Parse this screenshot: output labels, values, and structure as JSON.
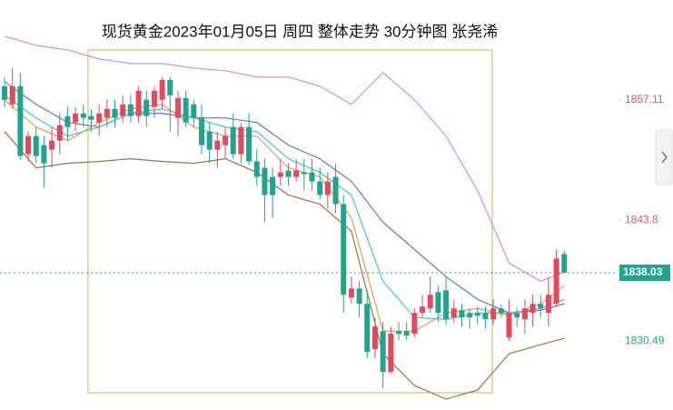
{
  "chart_data": {
    "type": "candlestick",
    "title": "现货黄金2023年01月05日 周四 整体走势  30分钟图  张尧浠",
    "up_color": "#e5475b",
    "down_color": "#1fa58f",
    "ylim": [
      1822.9,
      1868.1
    ],
    "yticks": [
      1857.11,
      1843.8,
      1830.49
    ],
    "ytick_colors": [
      "#d9556a",
      "#d9556a",
      "#1fa58f"
    ],
    "last_price": 1838.03,
    "last_price_color": "#1fa58f",
    "candles": [
      [
        1858.6,
        1859.6,
        1856.3,
        1857.1
      ],
      [
        1856.6,
        1860.6,
        1856.1,
        1858.6
      ],
      [
        1858.6,
        1860.1,
        1850.5,
        1850.9
      ],
      [
        1851.1,
        1853.6,
        1850.3,
        1853.1
      ],
      [
        1853.1,
        1854.1,
        1850.1,
        1850.9
      ],
      [
        1852.1,
        1853.1,
        1847.4,
        1850.1
      ],
      [
        1851.6,
        1854.1,
        1849.6,
        1852.6
      ],
      [
        1852.6,
        1855.6,
        1851.1,
        1854.3
      ],
      [
        1855.3,
        1856.3,
        1852.6,
        1854.1
      ],
      [
        1854.6,
        1856.3,
        1853.6,
        1855.6
      ],
      [
        1855.6,
        1856.6,
        1854.1,
        1855.1
      ],
      [
        1855.3,
        1856.1,
        1853.6,
        1854.9
      ],
      [
        1854.6,
        1856.6,
        1853.1,
        1855.6
      ],
      [
        1855.1,
        1857.1,
        1854.1,
        1856.1
      ],
      [
        1856.1,
        1857.1,
        1854.1,
        1855.1
      ],
      [
        1855.3,
        1857.6,
        1854.6,
        1856.6
      ],
      [
        1856.6,
        1857.6,
        1854.6,
        1855.3
      ],
      [
        1855.3,
        1858.6,
        1854.6,
        1858.1
      ],
      [
        1857.1,
        1858.1,
        1854.1,
        1855.3
      ],
      [
        1856.3,
        1858.6,
        1855.1,
        1858.1
      ],
      [
        1857.1,
        1859.6,
        1856.1,
        1859.3
      ],
      [
        1859.3,
        1859.6,
        1853.6,
        1857.6
      ],
      [
        1855.1,
        1858.1,
        1853.1,
        1857.3
      ],
      [
        1857.3,
        1858.1,
        1854.1,
        1854.6
      ],
      [
        1856.6,
        1857.1,
        1854.1,
        1855.1
      ],
      [
        1855.1,
        1856.6,
        1851.1,
        1852.1
      ],
      [
        1853.6,
        1854.6,
        1850.1,
        1851.6
      ],
      [
        1851.6,
        1853.6,
        1849.6,
        1852.6
      ],
      [
        1852.1,
        1854.1,
        1850.6,
        1853.1
      ],
      [
        1854.1,
        1855.6,
        1850.6,
        1851.1
      ],
      [
        1851.1,
        1854.6,
        1850.1,
        1854.1
      ],
      [
        1854.1,
        1855.6,
        1849.9,
        1850.3
      ],
      [
        1850.3,
        1851.6,
        1847.6,
        1848.6
      ],
      [
        1849.6,
        1850.6,
        1843.6,
        1846.6
      ],
      [
        1848.6,
        1849.6,
        1844.1,
        1846.6
      ],
      [
        1848.6,
        1850.6,
        1847.6,
        1849.1
      ],
      [
        1849.3,
        1850.1,
        1847.6,
        1848.6
      ],
      [
        1848.6,
        1850.6,
        1848.1,
        1849.3
      ],
      [
        1849.1,
        1850.6,
        1847.1,
        1848.9
      ],
      [
        1849.1,
        1850.6,
        1847.1,
        1848.1
      ],
      [
        1848.1,
        1849.6,
        1846.1,
        1846.6
      ],
      [
        1846.6,
        1849.1,
        1845.1,
        1848.1
      ],
      [
        1848.6,
        1850.1,
        1844.6,
        1845.6
      ],
      [
        1845.6,
        1846.6,
        1833.6,
        1835.6
      ],
      [
        1835.3,
        1837.6,
        1834.6,
        1836.3
      ],
      [
        1836.3,
        1837.1,
        1833.1,
        1834.6
      ],
      [
        1834.6,
        1836.1,
        1828.6,
        1829.3
      ],
      [
        1829.6,
        1833.1,
        1828.6,
        1832.1
      ],
      [
        1831.6,
        1832.6,
        1825.3,
        1827.1
      ],
      [
        1827.1,
        1832.1,
        1826.9,
        1831.3
      ],
      [
        1831.6,
        1832.6,
        1830.6,
        1831.3
      ],
      [
        1831.6,
        1832.6,
        1830.6,
        1831.1
      ],
      [
        1831.3,
        1834.1,
        1830.9,
        1833.6
      ],
      [
        1833.6,
        1835.6,
        1833.1,
        1834.3
      ],
      [
        1834.1,
        1837.6,
        1833.6,
        1835.6
      ],
      [
        1835.9,
        1836.6,
        1832.6,
        1833.6
      ],
      [
        1836.1,
        1837.6,
        1832.3,
        1832.9
      ],
      [
        1833.1,
        1835.1,
        1832.5,
        1834.1
      ],
      [
        1833.9,
        1834.6,
        1832.1,
        1833.1
      ],
      [
        1833.6,
        1834.1,
        1831.9,
        1833.1
      ],
      [
        1833.6,
        1834.3,
        1832.3,
        1833.3
      ],
      [
        1833.6,
        1834.3,
        1831.9,
        1832.9
      ],
      [
        1832.9,
        1835.1,
        1832.3,
        1834.1
      ],
      [
        1834.1,
        1834.6,
        1833.1,
        1833.6
      ],
      [
        1830.9,
        1835.1,
        1830.5,
        1833.6
      ],
      [
        1833.6,
        1834.1,
        1832.1,
        1833.1
      ],
      [
        1832.9,
        1835.1,
        1831.3,
        1834.1
      ],
      [
        1833.6,
        1835.6,
        1832.1,
        1834.6
      ],
      [
        1834.6,
        1835.6,
        1833.1,
        1834.1
      ],
      [
        1833.6,
        1837.6,
        1832.1,
        1835.6
      ],
      [
        1834.6,
        1840.6,
        1834.3,
        1839.6
      ],
      [
        1840.1,
        1840.5,
        1838.0,
        1838.03
      ]
    ],
    "line_x": [
      0,
      4,
      8,
      12,
      16,
      20,
      24,
      28,
      32,
      36,
      40,
      44,
      48,
      52,
      56,
      60,
      64,
      68,
      71
    ],
    "lines": [
      {
        "color": "#d98bd6",
        "values": [
          1864.1,
          1863.1,
          1862.6,
          1861.6,
          1861.1,
          1861.1,
          1860.6,
          1860.3,
          1859.6,
          1859.6,
          1858.6,
          1856.6,
          1860.1,
          1857.1,
          1853.1,
          1847.1,
          1839.1,
          1837.1,
          1838.1
        ]
      },
      {
        "color": "#a0704a",
        "values": [
          1853.6,
          1849.6,
          1850.1,
          1850.3,
          1850.6,
          1850.3,
          1850.1,
          1850.6,
          1849.1,
          1846.6,
          1845.6,
          1842.6,
          1829.1,
          1825.6,
          1824.1,
          1825.1,
          1829.1,
          1830.1,
          1830.8
        ]
      },
      {
        "color": "#6471d8",
        "values": [
          1859.1,
          1856.6,
          1854.6,
          1854.1,
          1855.6,
          1855.6,
          1855.1,
          1855.1,
          1854.6,
          1852.1,
          1850.6,
          1848.1,
          1843.6,
          1840.6,
          1837.6,
          1835.1,
          1833.6,
          1833.9,
          1834.6
        ]
      },
      {
        "color": "#3fc7cf",
        "values": [
          1857.6,
          1855.1,
          1853.1,
          1854.1,
          1855.6,
          1856.1,
          1855.1,
          1854.1,
          1853.6,
          1850.6,
          1849.1,
          1846.6,
          1837.1,
          1833.1,
          1832.9,
          1833.6,
          1833.6,
          1834.1,
          1835.1
        ]
      },
      {
        "color": "#f09a45",
        "values": [
          1857.1,
          1854.1,
          1852.6,
          1854.6,
          1856.1,
          1856.6,
          1854.1,
          1853.1,
          1853.1,
          1849.6,
          1848.6,
          1844.1,
          1831.6,
          1831.6,
          1833.6,
          1834.1,
          1833.3,
          1834.6,
          1836.6
        ]
      }
    ]
  }
}
